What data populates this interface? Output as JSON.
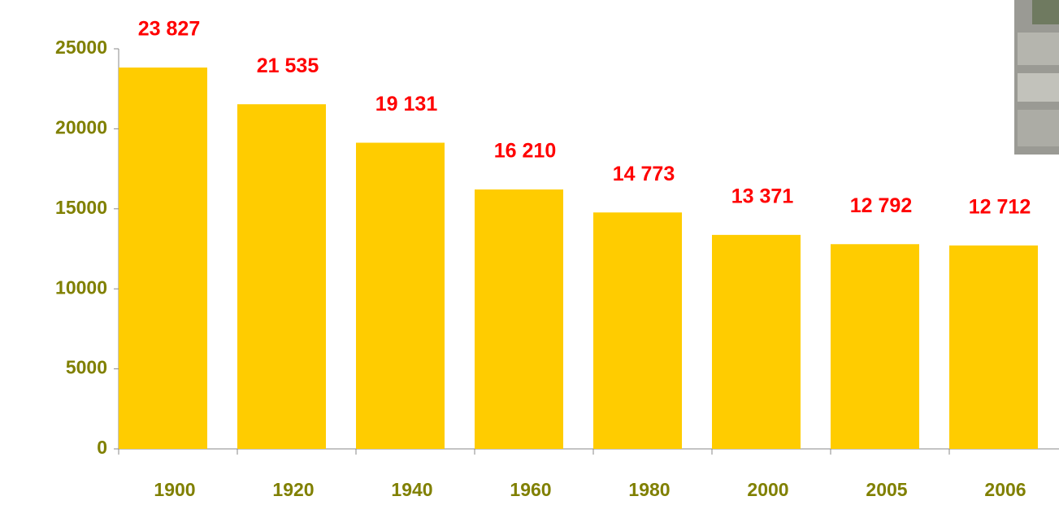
{
  "chart_data": {
    "type": "bar",
    "categories": [
      "1900",
      "1920",
      "1940",
      "1960",
      "1980",
      "2000",
      "2005",
      "2006"
    ],
    "values": [
      23827,
      21535,
      19131,
      16210,
      14773,
      13371,
      12792,
      12712
    ],
    "value_labels": [
      "23 827",
      "21 535",
      "19 131",
      "16 210",
      "14 773",
      "13 371",
      "12 792",
      "12 712"
    ],
    "color": "#ffcc00",
    "ylim": [
      0,
      25000
    ],
    "yticks": [
      0,
      5000,
      10000,
      15000,
      20000,
      25000
    ]
  }
}
